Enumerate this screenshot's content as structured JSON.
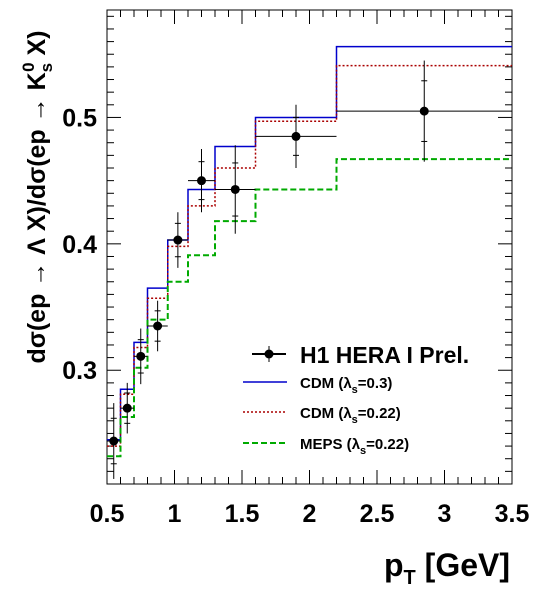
{
  "chart_data": {
    "type": "line",
    "xlabel": "p_T [GeV]",
    "ylabel": "dσ(ep → Λ X)/dσ(ep → K_s^0 X)",
    "xlim": [
      0.5,
      3.5
    ],
    "ylim": [
      0.21,
      0.585
    ],
    "x_ticks": [
      0.5,
      1,
      1.5,
      2,
      2.5,
      3,
      3.5
    ],
    "x_tick_labels": [
      "0.5",
      "1",
      "1.5",
      "2",
      "2.5",
      "3",
      "3.5"
    ],
    "y_ticks": [
      0.3,
      0.4,
      0.5
    ],
    "y_tick_labels": [
      "0.3",
      "0.4",
      "0.5"
    ],
    "grid": false,
    "legend_position": "bottom-right",
    "bin_edges": [
      0.5,
      0.6,
      0.7,
      0.8,
      0.95,
      1.1,
      1.3,
      1.6,
      2.2,
      3.5
    ],
    "data": {
      "name": "H1 HERA I Prel.",
      "points": [
        {
          "x": 0.55,
          "y": 0.244,
          "xerr": 0.05,
          "yerr": 0.03
        },
        {
          "x": 0.65,
          "y": 0.27,
          "xerr": 0.05,
          "yerr": 0.02
        },
        {
          "x": 0.75,
          "y": 0.311,
          "xerr": 0.05,
          "yerr": 0.022
        },
        {
          "x": 0.875,
          "y": 0.335,
          "xerr": 0.075,
          "yerr": 0.02
        },
        {
          "x": 1.025,
          "y": 0.403,
          "xerr": 0.075,
          "yerr": 0.022
        },
        {
          "x": 1.2,
          "y": 0.45,
          "xerr": 0.1,
          "yerr": 0.025
        },
        {
          "x": 1.45,
          "y": 0.443,
          "xerr": 0.15,
          "yerr": 0.035
        },
        {
          "x": 1.9,
          "y": 0.485,
          "xerr": 0.3,
          "yerr": 0.025
        },
        {
          "x": 2.85,
          "y": 0.505,
          "xerr": 0.65,
          "yerr": 0.04
        }
      ]
    },
    "series": [
      {
        "name": "CDM (λ_s=0.3)",
        "color": "#0000cc",
        "style": "solid",
        "values": [
          0.245,
          0.285,
          0.322,
          0.365,
          0.403,
          0.443,
          0.477,
          0.5,
          0.556
        ]
      },
      {
        "name": "CDM (λ_s=0.22)",
        "color": "#aa0000",
        "style": "dotted",
        "values": [
          0.24,
          0.281,
          0.318,
          0.357,
          0.398,
          0.43,
          0.46,
          0.497,
          0.541
        ]
      },
      {
        "name": "MEPS (λ_s=0.22)",
        "color": "#00aa00",
        "style": "dashed",
        "values": [
          0.232,
          0.263,
          0.302,
          0.34,
          0.37,
          0.391,
          0.418,
          0.443,
          0.467
        ]
      }
    ],
    "legend": {
      "data_label": "H1 HERA I Prel.",
      "entries": [
        {
          "prefix": "CDM (",
          "sym": "λ",
          "sub": "s",
          "suffix": "=0.3)"
        },
        {
          "prefix": "CDM (",
          "sym": "λ",
          "sub": "s",
          "suffix": "=0.22)"
        },
        {
          "prefix": "MEPS (",
          "sym": "λ",
          "sub": "s",
          "suffix": "=0.22)"
        }
      ]
    }
  }
}
